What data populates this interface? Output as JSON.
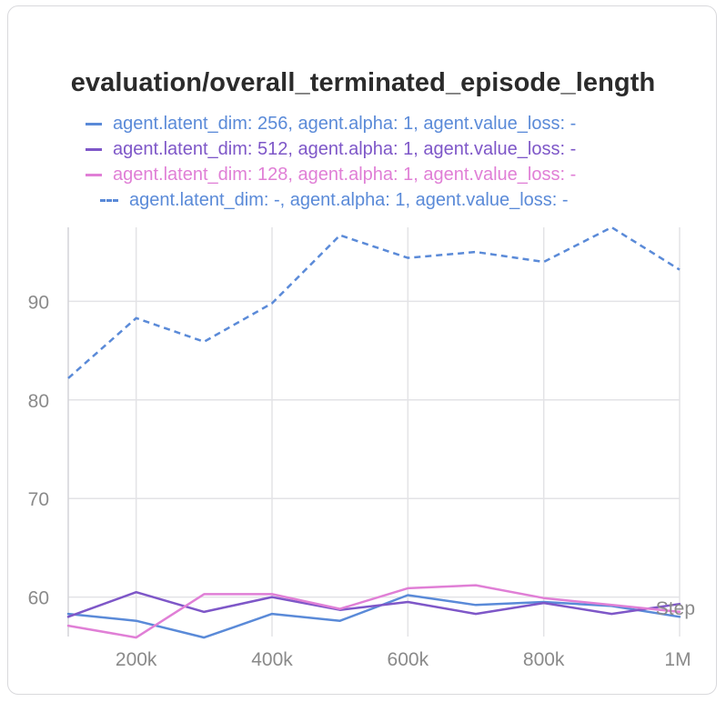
{
  "panel": {
    "title": "evaluation/overall_terminated_episode_length"
  },
  "legend": [
    {
      "label": "agent.latent_dim: 256, agent.alpha: 1, agent.value_loss: -",
      "color": "#5a8ad8",
      "dash": false
    },
    {
      "label": "agent.latent_dim: 512, agent.alpha: 1, agent.value_loss: -",
      "color": "#7e57c8",
      "dash": false
    },
    {
      "label": "agent.latent_dim: 128, agent.alpha: 1, agent.value_loss: -",
      "color": "#e07fd6",
      "dash": false
    },
    {
      "label": "agent.latent_dim: -, agent.alpha: 1, agent.value_loss: -",
      "color": "#5a8ad8",
      "dash": true
    }
  ],
  "chart_data": {
    "type": "line",
    "title": "evaluation/overall_terminated_episode_length",
    "xlabel": "Step",
    "ylabel": "",
    "x": [
      100000,
      200000,
      300000,
      400000,
      500000,
      600000,
      700000,
      800000,
      900000,
      1000000
    ],
    "xlim": [
      100000,
      1000000
    ],
    "ylim": [
      56,
      97.5
    ],
    "xticks": [
      200000,
      400000,
      600000,
      800000,
      1000000
    ],
    "xtick_labels": [
      "200k",
      "400k",
      "600k",
      "800k",
      "1M"
    ],
    "yticks": [
      60,
      70,
      80,
      90
    ],
    "ytick_labels": [
      "60",
      "70",
      "80",
      "90"
    ],
    "grid": true,
    "series": [
      {
        "name": "agent.latent_dim: 256, agent.alpha: 1, agent.value_loss: -",
        "color": "#5a8ad8",
        "dash": false,
        "values": [
          58.3,
          57.6,
          55.9,
          58.3,
          57.6,
          60.2,
          59.2,
          59.5,
          59.1,
          58.0
        ]
      },
      {
        "name": "agent.latent_dim: 512, agent.alpha: 1, agent.value_loss: -",
        "color": "#7e57c8",
        "dash": false,
        "values": [
          58.0,
          60.5,
          58.5,
          60.0,
          58.7,
          59.5,
          58.3,
          59.4,
          58.3,
          59.3
        ]
      },
      {
        "name": "agent.latent_dim: 128, agent.alpha: 1, agent.value_loss: -",
        "color": "#e07fd6",
        "dash": false,
        "values": [
          57.1,
          55.9,
          60.3,
          60.3,
          58.8,
          60.9,
          61.2,
          59.9,
          59.2,
          58.5
        ]
      },
      {
        "name": "agent.latent_dim: -, agent.alpha: 1, agent.value_loss: -",
        "color": "#5a8ad8",
        "dash": true,
        "values": [
          82.2,
          88.3,
          85.9,
          89.8,
          96.7,
          94.4,
          95.0,
          94.0,
          97.5,
          93.2
        ]
      }
    ]
  }
}
